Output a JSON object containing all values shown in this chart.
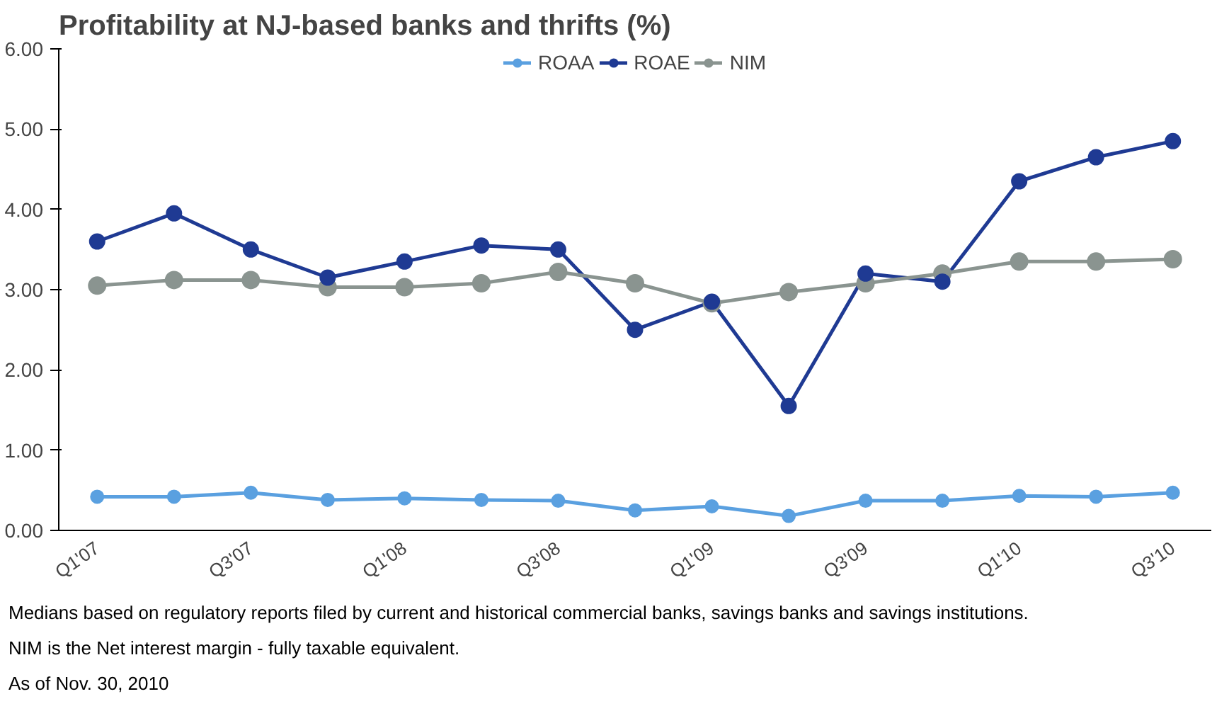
{
  "chart_data": {
    "type": "line",
    "title": "Profitability at NJ-based banks and thrifts (%)",
    "categories": [
      "Q1'07",
      null,
      "Q3'07",
      null,
      "Q1'08",
      null,
      "Q3'08",
      null,
      "Q1'09",
      null,
      "Q3'09",
      null,
      "Q1'10",
      null,
      "Q3'10"
    ],
    "series": [
      {
        "name": "ROAA",
        "color": "#5aa0e0",
        "values": [
          0.42,
          0.42,
          0.47,
          0.38,
          0.4,
          0.38,
          0.37,
          0.25,
          0.3,
          0.18,
          0.37,
          0.37,
          0.43,
          0.42,
          0.47
        ]
      },
      {
        "name": "ROAE",
        "color": "#1f3a93",
        "values": [
          3.6,
          3.95,
          3.5,
          3.15,
          3.35,
          3.55,
          3.5,
          2.5,
          2.85,
          1.55,
          3.2,
          3.1,
          4.35,
          4.65,
          4.85
        ]
      },
      {
        "name": "NIM",
        "color": "#8a9490",
        "values": [
          3.05,
          3.12,
          3.12,
          3.03,
          3.03,
          3.08,
          3.22,
          3.08,
          2.83,
          2.97,
          3.08,
          3.2,
          3.35,
          3.35,
          3.38
        ]
      }
    ],
    "ylim": [
      0,
      6
    ],
    "yticks": [
      {
        "value": 0,
        "label": "0.00"
      },
      {
        "value": 1,
        "label": "1.00"
      },
      {
        "value": 2,
        "label": "2.00"
      },
      {
        "value": 3,
        "label": "3.00"
      },
      {
        "value": 4,
        "label": "4.00"
      },
      {
        "value": 5,
        "label": "5.00"
      },
      {
        "value": 6,
        "label": "6.00"
      }
    ],
    "grid": false,
    "legend": "top",
    "marker": "circle",
    "line_style": "solid",
    "annotations": [
      "Medians based on regulatory reports filed by current and historical commercial banks, savings banks and savings institutions.",
      "NIM is the Net interest margin - fully taxable equivalent.",
      "As of Nov. 30, 2010"
    ]
  }
}
